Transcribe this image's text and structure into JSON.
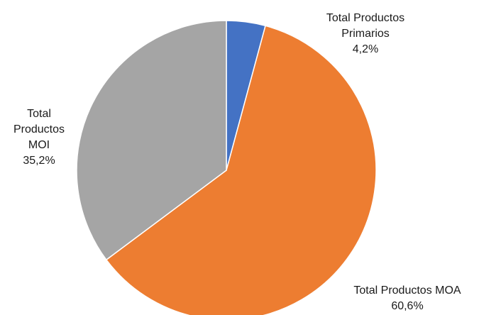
{
  "chart_data": {
    "type": "pie",
    "title": "",
    "slices": [
      {
        "label_lines": [
          "Total Productos",
          "Primarios"
        ],
        "value_label": "4,2%",
        "value": 4.2,
        "color": "#4472C4"
      },
      {
        "label_lines": [
          "Total Productos MOA"
        ],
        "value_label": "60,6%",
        "value": 60.6,
        "color": "#ED7D31"
      },
      {
        "label_lines": [
          "Total",
          "Productos",
          "MOI"
        ],
        "value_label": "35,2%",
        "value": 35.2,
        "color": "#A5A5A5"
      }
    ],
    "legend": "none",
    "data_labels": "outside"
  }
}
